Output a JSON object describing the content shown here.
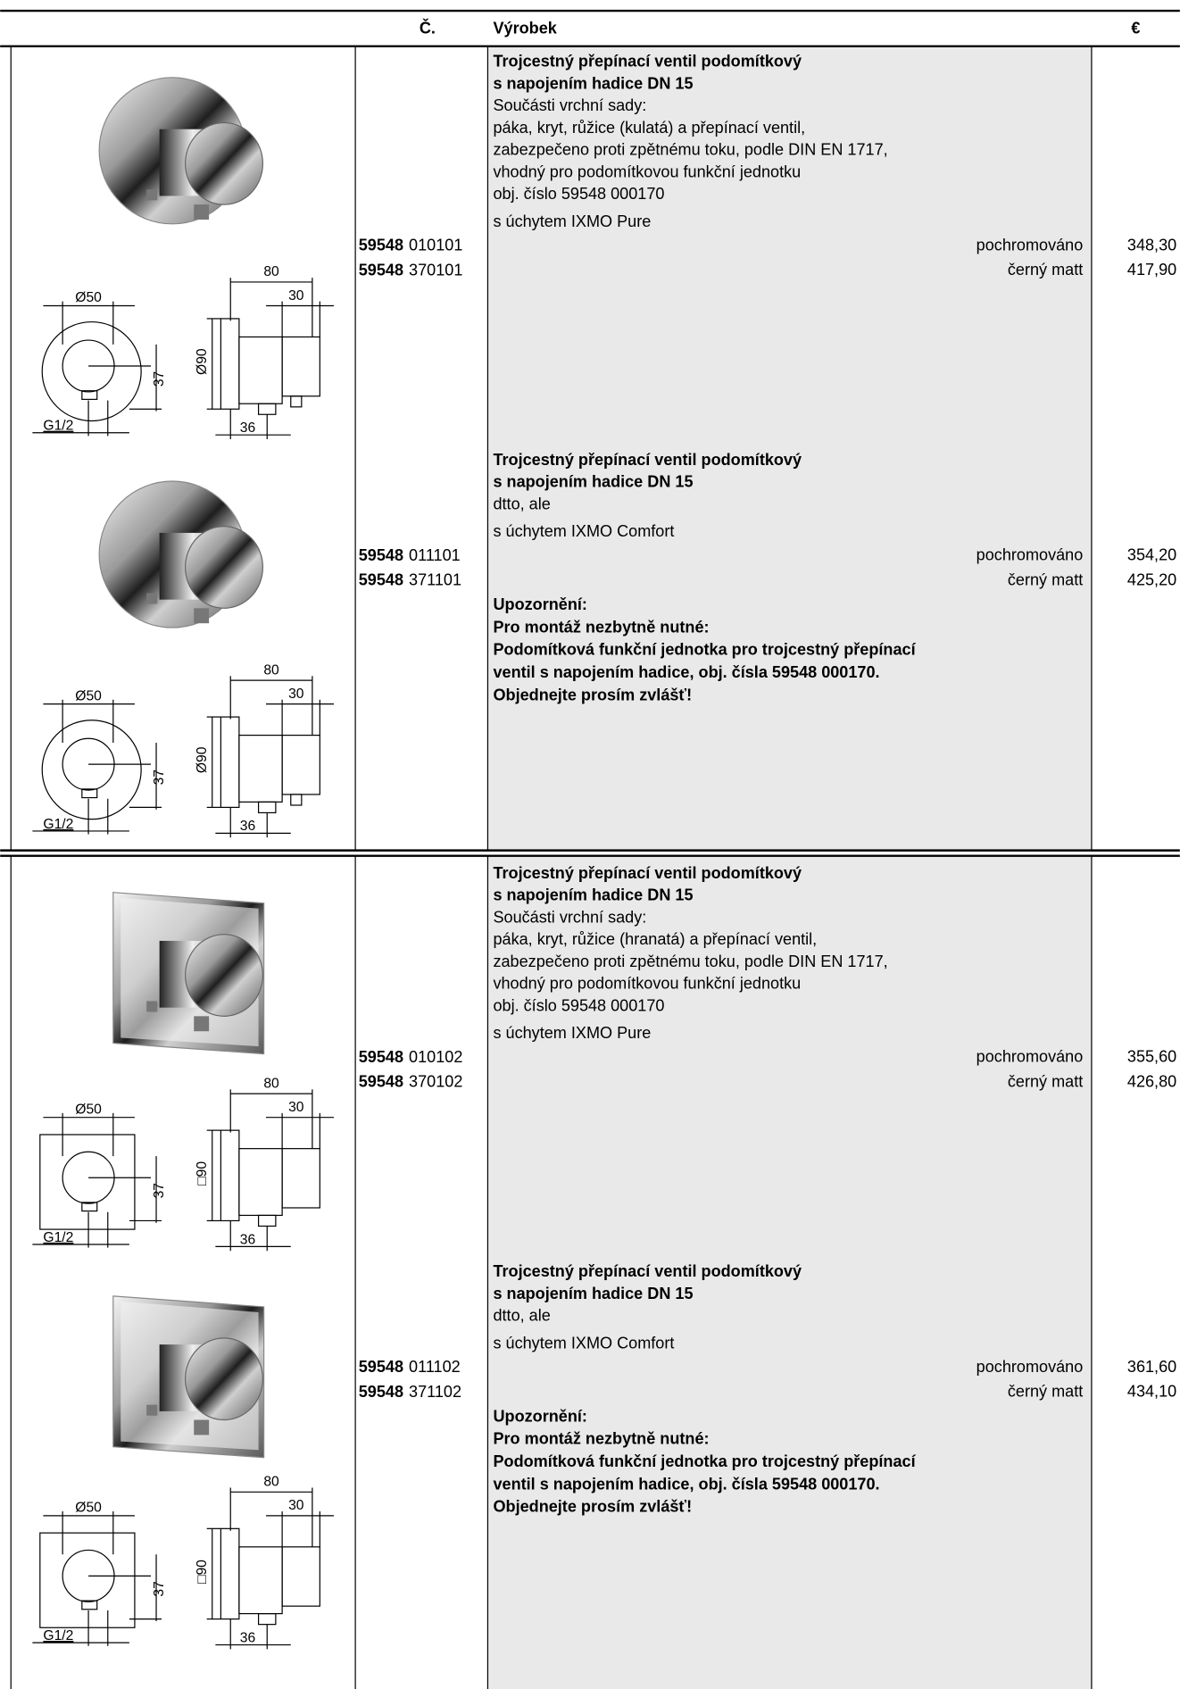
{
  "header": {
    "number": "Č.",
    "product": "Výrobek",
    "price": "€"
  },
  "sections": [
    {
      "items": [
        {
          "title": [
            "Trojcestný přepínací ventil podomítkový",
            "s napojením hadice DN 15"
          ],
          "description": [
            "Součásti vrchní sady:",
            "páka, kryt, růžice (kulatá) a přepínací ventil,",
            "zabezpečeno proti zpětnému toku, podle DIN EN 1717,",
            "vhodný pro podomítkovou funkční jednotku",
            "obj. číslo 59548 000170"
          ],
          "handle": "s úchytem IXMO Pure",
          "variants": [
            {
              "code_prefix": "59548",
              "code_suffix": "010101",
              "finish": "pochromováno",
              "price": "348,30"
            },
            {
              "code_prefix": "59548",
              "code_suffix": "370101",
              "finish": "černý matt",
              "price": "417,90"
            }
          ],
          "drawing": {
            "front": "Ø50",
            "depth": "80",
            "cap": "30",
            "height": "37",
            "plate": "Ø90",
            "thread": "G1/2",
            "outlet": "36"
          }
        },
        {
          "title": [
            "Trojcestný přepínací ventil podomítkový",
            "s napojením hadice DN 15"
          ],
          "description": [
            "dtto, ale"
          ],
          "handle": "s úchytem IXMO Comfort",
          "variants": [
            {
              "code_prefix": "59548",
              "code_suffix": "011101",
              "finish": "pochromováno",
              "price": "354,20"
            },
            {
              "code_prefix": "59548",
              "code_suffix": "371101",
              "finish": "černý matt",
              "price": "425,20"
            }
          ],
          "note": [
            "Upozornění:",
            "Pro montáž nezbytně nutné:",
            "Podomítková funkční jednotka pro trojcestný přepínací",
            "ventil s napojením hadice, obj. čísla 59548 000170.",
            "Objednejte prosím zvlášť!"
          ],
          "drawing": {
            "front": "Ø50",
            "depth": "80",
            "cap": "30",
            "height": "37",
            "plate": "Ø90",
            "thread": "G1/2",
            "outlet": "36"
          }
        }
      ]
    },
    {
      "items": [
        {
          "title": [
            "Trojcestný přepínací ventil podomítkový",
            "s napojením hadice DN 15"
          ],
          "description": [
            "Součásti vrchní sady:",
            "páka, kryt, růžice (hranatá) a přepínací ventil,",
            "zabezpečeno proti zpětnému toku, podle DIN EN 1717,",
            "vhodný pro podomítkovou funkční jednotku",
            "obj. číslo 59548 000170"
          ],
          "handle": "s úchytem IXMO Pure",
          "variants": [
            {
              "code_prefix": "59548",
              "code_suffix": "010102",
              "finish": "pochromováno",
              "price": "355,60"
            },
            {
              "code_prefix": "59548",
              "code_suffix": "370102",
              "finish": "černý matt",
              "price": "426,80"
            }
          ],
          "drawing": {
            "front": "Ø50",
            "depth": "80",
            "cap": "30",
            "height": "37",
            "plate": "□90",
            "thread": "G1/2",
            "outlet": "36"
          }
        },
        {
          "title": [
            "Trojcestný přepínací ventil podomítkový",
            "s napojením hadice DN 15"
          ],
          "description": [
            "dtto, ale"
          ],
          "handle": "s úchytem IXMO Comfort",
          "variants": [
            {
              "code_prefix": "59548",
              "code_suffix": "011102",
              "finish": "pochromováno",
              "price": "361,60"
            },
            {
              "code_prefix": "59548",
              "code_suffix": "371102",
              "finish": "černý matt",
              "price": "434,10"
            }
          ],
          "note": [
            "Upozornění:",
            "Pro montáž nezbytně nutné:",
            "Podomítková funkční jednotka pro trojcestný přepínací",
            "ventil s napojením hadice, obj. čísla 59548 000170.",
            "Objednejte prosím zvlášť!"
          ],
          "drawing": {
            "front": "Ø50",
            "depth": "80",
            "cap": "30",
            "height": "37",
            "plate": "□90",
            "thread": "G1/2",
            "outlet": "36"
          }
        }
      ]
    }
  ]
}
